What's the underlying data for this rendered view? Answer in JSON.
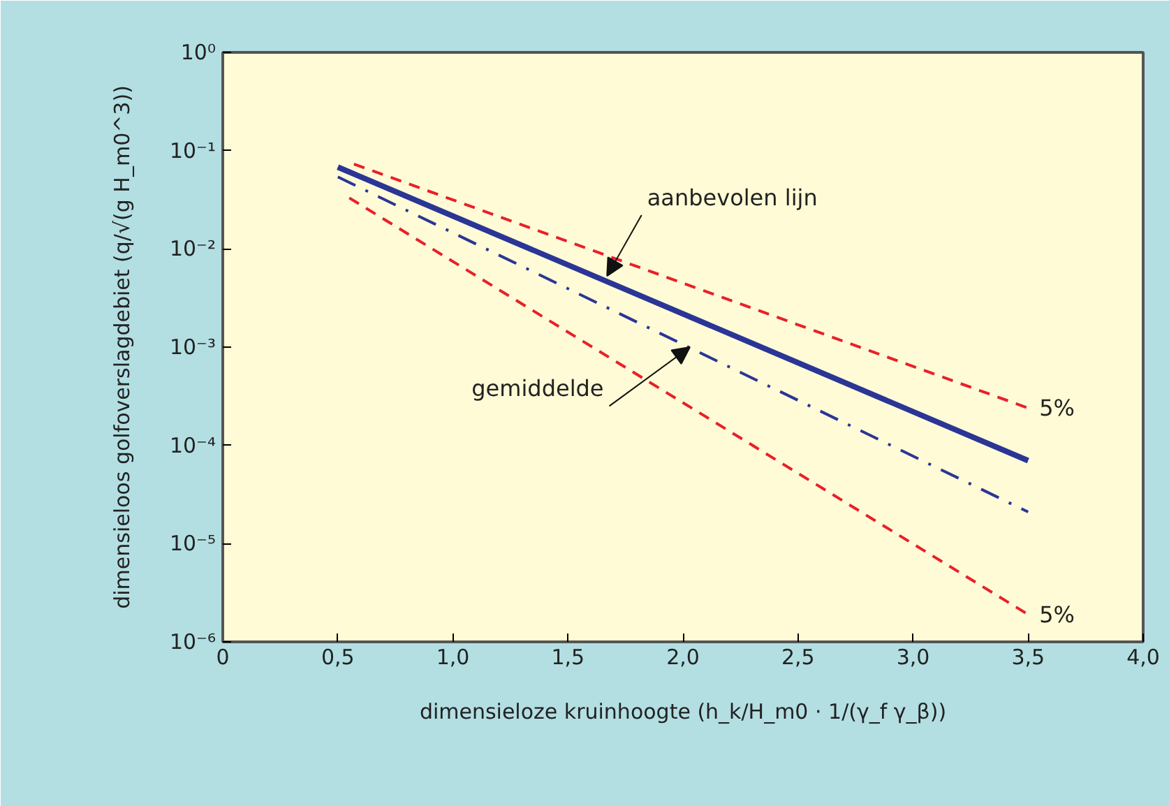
{
  "chart_data": {
    "type": "line",
    "xlabel": "dimensieloze kruinhoogte (h_k/H_m0 · 1/(γ_f γ_β))",
    "ylabel": "dimensieloos golfoverslagdebiet (q/√(g H_m0^3))",
    "x": [
      0.5,
      3.5
    ],
    "series": [
      {
        "color": "#e8202a",
        "line_style": "dashed",
        "x": [
          0.57,
          3.5
        ],
        "values": [
          0.073,
          0.00024
        ]
      },
      {
        "color": "#2b3596",
        "line_style": "solid",
        "values": [
          0.068,
          7e-05
        ]
      },
      {
        "color": "#2b3596",
        "line_style": "dashdot",
        "values": [
          0.054,
          2.1e-05
        ]
      },
      {
        "color": "#e8202a",
        "line_style": "dashed",
        "x": [
          0.55,
          3.5
        ],
        "values": [
          0.033,
          1.9e-06
        ]
      }
    ],
    "log": "y",
    "xlim": [
      0,
      4
    ],
    "ylim": [
      1e-06,
      1
    ],
    "xticks": [
      0,
      {
        "value": 0.5,
        "label": "0,5"
      },
      {
        "value": 1,
        "label": "1,0"
      },
      {
        "value": 1.5,
        "label": "1,5"
      },
      {
        "value": 2,
        "label": "2,0"
      },
      {
        "value": 2.5,
        "label": "2,5"
      },
      {
        "value": 3,
        "label": "3,0"
      },
      {
        "value": 3.5,
        "label": "3,5"
      },
      {
        "value": 4,
        "label": "4,0"
      }
    ],
    "yticks": [
      {
        "value": 1e-06,
        "label": "10⁻⁶"
      },
      {
        "value": 1e-05,
        "label": "10⁻⁵"
      },
      {
        "value": 0.0001,
        "label": "10⁻⁴"
      },
      {
        "value": 0.001,
        "label": "10⁻³"
      },
      {
        "value": 0.01,
        "label": "10⁻²"
      },
      {
        "value": 0.1,
        "label": "10⁻¹"
      },
      {
        "value": 1,
        "label": "10⁰"
      }
    ],
    "annotations": [
      {
        "text": "aanbevolen lijn",
        "x": 1.67,
        "y": 0.0053
      },
      {
        "text": "gemiddelde",
        "x": 2.03,
        "y": 0.001
      },
      {
        "text": "5%",
        "x": 3.5,
        "y": 0.00024
      },
      {
        "text": "5%",
        "x": 3.5,
        "y": 1.9e-06
      }
    ],
    "grid": false,
    "marker": "none"
  }
}
